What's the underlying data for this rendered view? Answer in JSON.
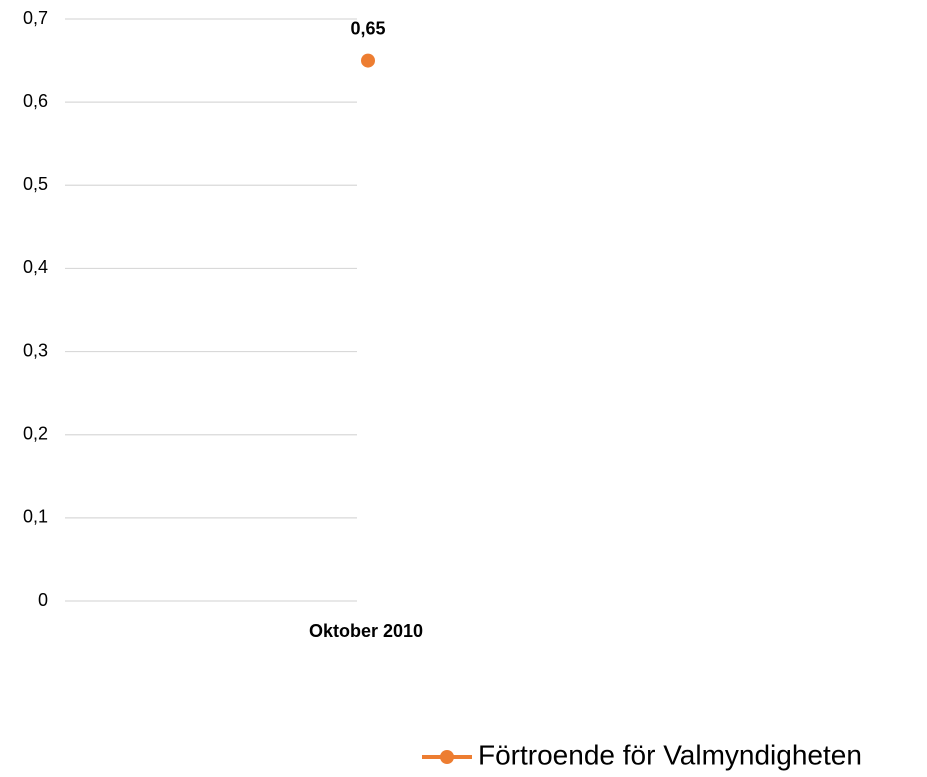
{
  "chart_data": {
    "type": "line",
    "categories": [
      "Oktober 2010"
    ],
    "series": [
      {
        "name": "Förtroende för Valmyndigheten",
        "color": "#ed7d31",
        "values": [
          0.65
        ],
        "value_labels": [
          "0,65"
        ]
      }
    ],
    "ylim": [
      0,
      0.7
    ],
    "yticks": [
      0,
      {
        "value": 0.1,
        "label": "0,1"
      },
      {
        "value": 0.2,
        "label": "0,2"
      },
      {
        "value": 0.3,
        "label": "0,3"
      },
      {
        "value": 0.4,
        "label": "0,4"
      },
      {
        "value": 0.5,
        "label": "0,5"
      },
      {
        "value": 0.6,
        "label": "0,6"
      },
      {
        "value": 0.7,
        "label": "0,7"
      }
    ],
    "grid": true,
    "legend": "bottom"
  }
}
